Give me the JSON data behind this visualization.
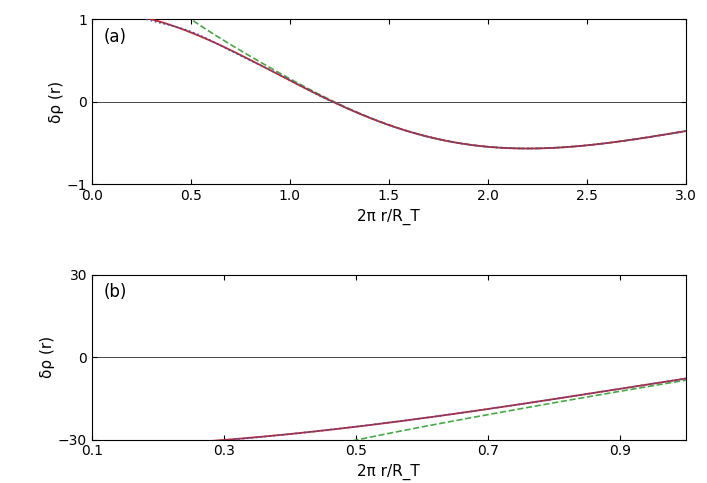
{
  "panel_a": {
    "xlim": [
      0.0,
      3.0
    ],
    "ylim": [
      -1.0,
      1.0
    ],
    "xlabel": "2π r/R_T",
    "ylabel": "δρ (r)",
    "yticks": [
      -1,
      0,
      1
    ],
    "xticks": [
      0,
      0.5,
      1.0,
      1.5,
      2.0,
      2.5,
      3.0
    ],
    "label": "(a)"
  },
  "panel_b": {
    "xlim": [
      0.1,
      1.0
    ],
    "ylim": [
      -30,
      30
    ],
    "xlabel": "2π r/R_T",
    "ylabel": "δρ (r)",
    "yticks": [
      -30,
      0,
      30
    ],
    "xticks": [
      0.1,
      0.3,
      0.5,
      0.7,
      0.9
    ],
    "label": "(b)"
  },
  "color_red": "#cc2222",
  "color_blue": "#3355bb",
  "color_green": "#44aa44"
}
